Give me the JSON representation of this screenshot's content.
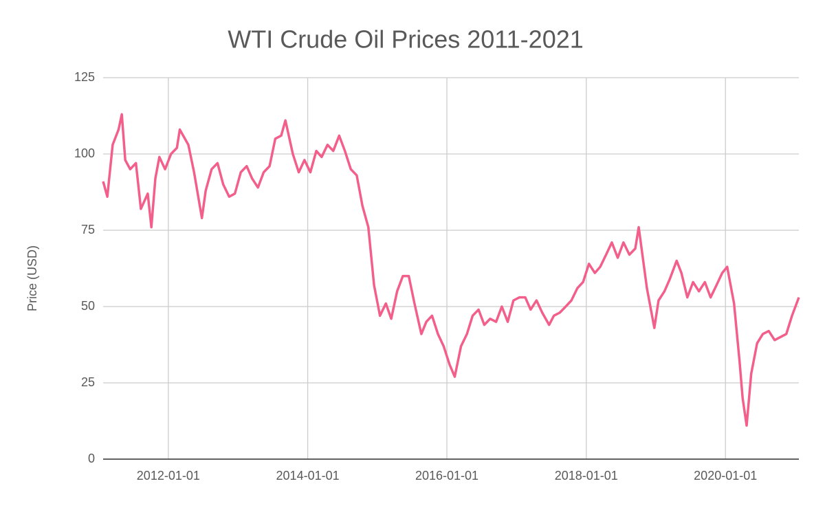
{
  "chart_data": {
    "type": "line",
    "title": "WTI Crude Oil Prices 2011-2021",
    "y_label": "Price (USD)",
    "color": "#f25f8b",
    "grid": true,
    "x": [
      "2011-01-24",
      "2011-02-15",
      "2011-03-15",
      "2011-04-15",
      "2011-05-02",
      "2011-05-20",
      "2011-06-15",
      "2011-07-15",
      "2011-08-10",
      "2011-09-15",
      "2011-10-04",
      "2011-10-25",
      "2011-11-15",
      "2011-12-15",
      "2012-01-15",
      "2012-02-15",
      "2012-03-01",
      "2012-04-15",
      "2012-05-15",
      "2012-06-25",
      "2012-07-15",
      "2012-08-15",
      "2012-09-15",
      "2012-10-15",
      "2012-11-15",
      "2012-12-15",
      "2013-01-15",
      "2013-02-15",
      "2013-03-15",
      "2013-04-15",
      "2013-05-15",
      "2013-06-15",
      "2013-07-15",
      "2013-08-15",
      "2013-09-06",
      "2013-10-15",
      "2013-11-15",
      "2013-12-15",
      "2014-01-15",
      "2014-02-15",
      "2014-03-15",
      "2014-04-15",
      "2014-05-15",
      "2014-06-15",
      "2014-07-15",
      "2014-08-15",
      "2014-09-15",
      "2014-10-15",
      "2014-11-15",
      "2014-12-15",
      "2015-01-15",
      "2015-02-15",
      "2015-03-15",
      "2015-04-15",
      "2015-05-15",
      "2015-06-15",
      "2015-07-15",
      "2015-08-20",
      "2015-09-15",
      "2015-10-15",
      "2015-11-15",
      "2015-12-15",
      "2016-01-15",
      "2016-02-11",
      "2016-03-15",
      "2016-04-15",
      "2016-05-15",
      "2016-06-15",
      "2016-07-15",
      "2016-08-15",
      "2016-09-15",
      "2016-10-15",
      "2016-11-15",
      "2016-12-15",
      "2017-01-15",
      "2017-02-15",
      "2017-03-15",
      "2017-04-15",
      "2017-05-15",
      "2017-06-20",
      "2017-07-15",
      "2017-08-15",
      "2017-09-15",
      "2017-10-15",
      "2017-11-15",
      "2017-12-15",
      "2018-01-15",
      "2018-02-15",
      "2018-03-15",
      "2018-04-15",
      "2018-05-15",
      "2018-06-15",
      "2018-07-15",
      "2018-08-15",
      "2018-09-15",
      "2018-10-03",
      "2018-11-15",
      "2018-12-24",
      "2019-01-15",
      "2019-02-15",
      "2019-03-15",
      "2019-04-20",
      "2019-05-15",
      "2019-06-15",
      "2019-07-15",
      "2019-08-15",
      "2019-09-15",
      "2019-10-15",
      "2019-11-15",
      "2019-12-15",
      "2020-01-10",
      "2020-02-15",
      "2020-03-15",
      "2020-03-31",
      "2020-04-21",
      "2020-05-15",
      "2020-06-15",
      "2020-07-15",
      "2020-08-15",
      "2020-09-15",
      "2020-10-15",
      "2020-11-15",
      "2020-12-15",
      "2021-01-20"
    ],
    "values": [
      91,
      86,
      103,
      108,
      113,
      98,
      95,
      97,
      82,
      87,
      76,
      92,
      99,
      95,
      100,
      102,
      108,
      103,
      94,
      79,
      88,
      95,
      97,
      90,
      86,
      87,
      94,
      96,
      92,
      89,
      94,
      96,
      105,
      106,
      111,
      100,
      94,
      98,
      94,
      101,
      99,
      103,
      101,
      106,
      101,
      95,
      93,
      83,
      76,
      57,
      47,
      51,
      46,
      55,
      60,
      60,
      51,
      41,
      45,
      47,
      41,
      37,
      31,
      27,
      37,
      41,
      47,
      49,
      44,
      46,
      45,
      50,
      45,
      52,
      53,
      53,
      49,
      52,
      48,
      44,
      47,
      48,
      50,
      52,
      56,
      58,
      64,
      61,
      63,
      67,
      71,
      66,
      71,
      67,
      69,
      76,
      56,
      43,
      52,
      55,
      59,
      65,
      61,
      53,
      58,
      55,
      58,
      53,
      57,
      61,
      63,
      51,
      32,
      20,
      11,
      28,
      38,
      41,
      42,
      39,
      40,
      41,
      47,
      53
    ],
    "xlim": [
      "2011-01-24",
      "2021-01-20"
    ],
    "xticks": [
      "2012-01-01",
      "2014-01-01",
      "2016-01-01",
      "2018-01-01",
      "2020-01-01"
    ],
    "ylim": [
      0,
      125
    ],
    "yticks": [
      0,
      25,
      50,
      75,
      100,
      125
    ]
  }
}
